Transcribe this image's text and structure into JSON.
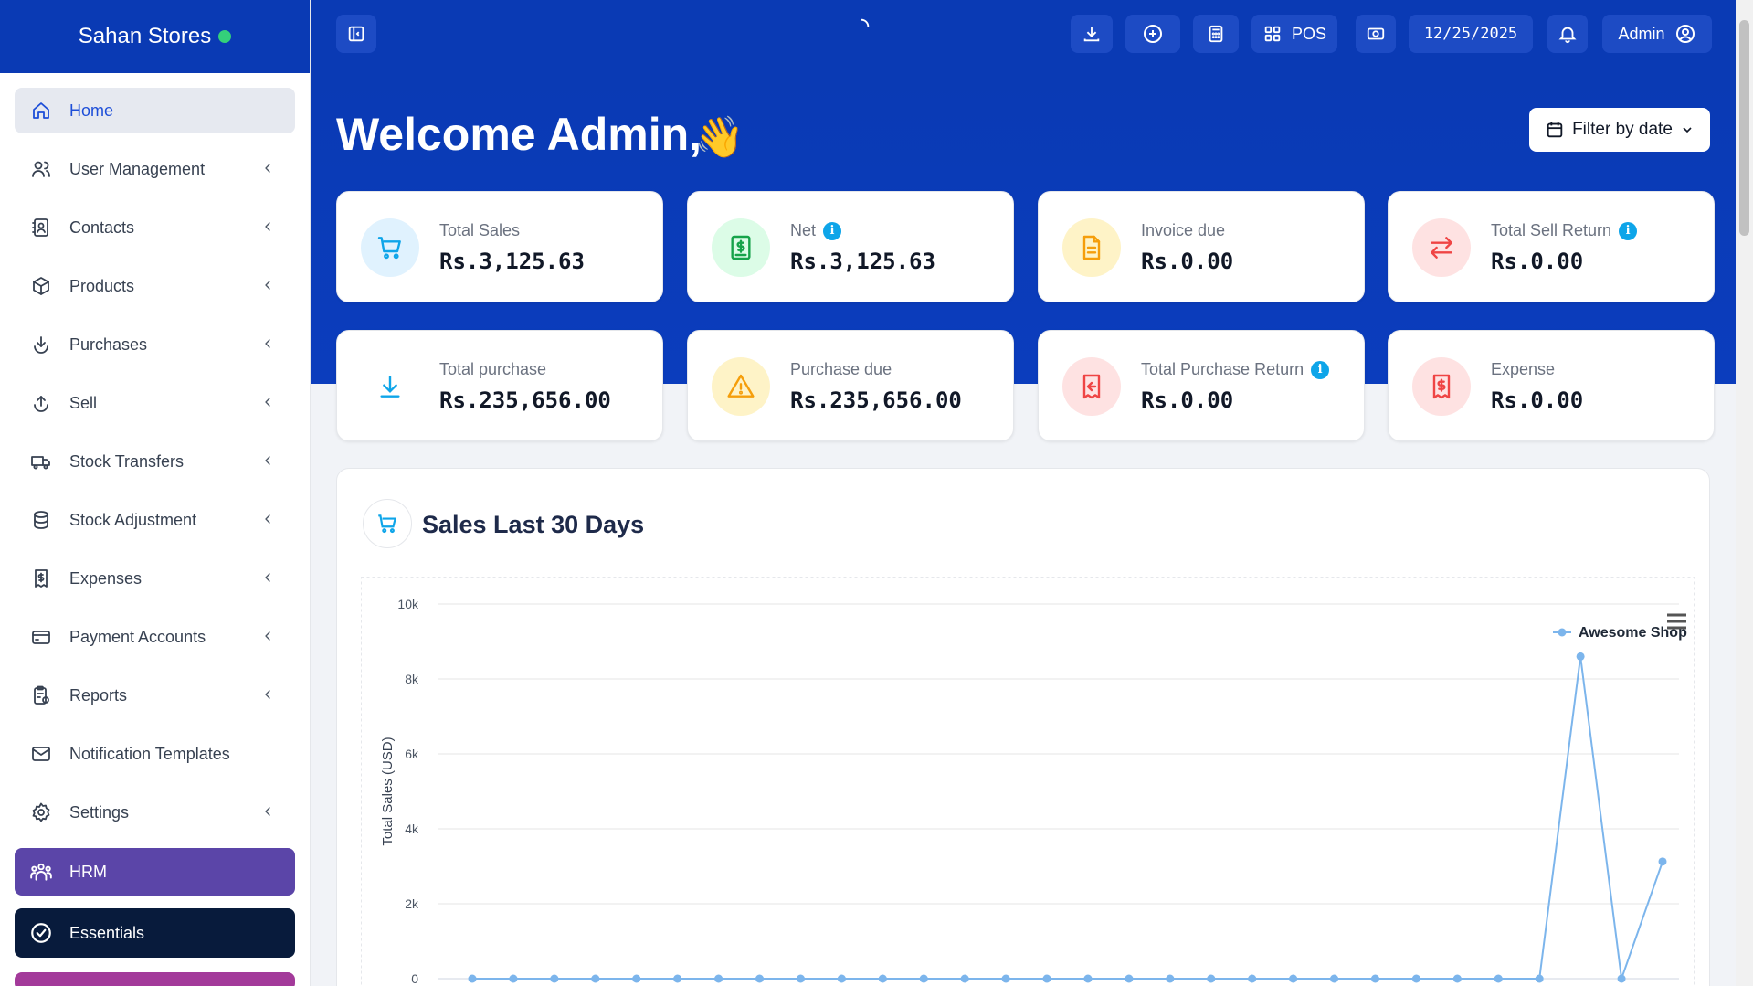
{
  "brand": {
    "name": "Sahan Stores",
    "status_color": "#34d07a"
  },
  "sidebar": {
    "items": [
      {
        "label": "Home",
        "icon": "home-icon",
        "active": true,
        "chevron": false
      },
      {
        "label": "User Management",
        "icon": "users-icon",
        "chevron": true
      },
      {
        "label": "Contacts",
        "icon": "contacts-icon",
        "chevron": true
      },
      {
        "label": "Products",
        "icon": "box-icon",
        "chevron": true
      },
      {
        "label": "Purchases",
        "icon": "download-circle-icon",
        "chevron": true
      },
      {
        "label": "Sell",
        "icon": "upload-circle-icon",
        "chevron": true
      },
      {
        "label": "Stock Transfers",
        "icon": "truck-icon",
        "chevron": true
      },
      {
        "label": "Stock Adjustment",
        "icon": "database-icon",
        "chevron": true
      },
      {
        "label": "Expenses",
        "icon": "receipt-dollar-icon",
        "chevron": true
      },
      {
        "label": "Payment Accounts",
        "icon": "credit-card-icon",
        "chevron": true
      },
      {
        "label": "Reports",
        "icon": "clipboard-report-icon",
        "chevron": true
      },
      {
        "label": "Notification Templates",
        "icon": "envelope-icon",
        "chevron": false
      },
      {
        "label": "Settings",
        "icon": "gear-icon",
        "chevron": true
      }
    ],
    "hrm_label": "HRM",
    "essentials_label": "Essentials",
    "hrm_color": "#5b45a8",
    "essentials_color": "#081b3c"
  },
  "topbar": {
    "pos_label": "POS",
    "date": "12/25/2025",
    "user_label": "Admin",
    "bg_color": "#0a3ab4"
  },
  "welcome": {
    "text": "Welcome Admin,",
    "emoji": "👋"
  },
  "filter": {
    "label": "Filter by date"
  },
  "stats": [
    {
      "label": "Total Sales",
      "value": "Rs.3,125.63",
      "info": false,
      "icon": "cart-icon",
      "bg": "#e0f2fe",
      "color": "#0ea5e9"
    },
    {
      "label": "Net",
      "value": "Rs.3,125.63",
      "info": true,
      "icon": "dollar-receipt-icon",
      "bg": "#dcfce7",
      "color": "#16a34a"
    },
    {
      "label": "Invoice due",
      "value": "Rs.0.00",
      "info": false,
      "icon": "document-icon",
      "bg": "#fef3c7",
      "color": "#f59e0b"
    },
    {
      "label": "Total Sell Return",
      "value": "Rs.0.00",
      "info": true,
      "icon": "exchange-arrows-icon",
      "bg": "#fee2e2",
      "color": "#ef4444"
    },
    {
      "label": "Total purchase",
      "value": "Rs.235,656.00",
      "info": false,
      "icon": "download-arrow-icon",
      "bg": "#ffffff",
      "color": "#0ea5e9"
    },
    {
      "label": "Purchase due",
      "value": "Rs.235,656.00",
      "info": false,
      "icon": "warning-triangle-icon",
      "bg": "#fef3c7",
      "color": "#f59e0b"
    },
    {
      "label": "Total Purchase Return",
      "value": "Rs.0.00",
      "info": true,
      "icon": "return-receipt-icon",
      "bg": "#fee2e2",
      "color": "#ef4444"
    },
    {
      "label": "Expense",
      "value": "Rs.0.00",
      "info": false,
      "icon": "expense-receipt-icon",
      "bg": "#fee2e2",
      "color": "#ef4444"
    }
  ],
  "sales_chart": {
    "title": "Sales Last 30 Days",
    "menu_icon": "hamburger-menu-icon"
  },
  "chart_data": {
    "type": "line",
    "title": "Sales Last 30 Days",
    "ylabel": "Total Sales (USD)",
    "xlabel": "",
    "ylim": [
      0,
      10000
    ],
    "yticks": [
      "0",
      "2k",
      "4k",
      "6k",
      "8k",
      "10k"
    ],
    "legend_position": "top-right",
    "grid": true,
    "series": [
      {
        "name": "Awesome Shop",
        "color": "#7cb5ec",
        "values": [
          0,
          0,
          0,
          0,
          0,
          0,
          0,
          0,
          0,
          0,
          0,
          0,
          0,
          0,
          0,
          0,
          0,
          0,
          0,
          0,
          0,
          0,
          0,
          0,
          0,
          0,
          0,
          8600,
          0,
          3125.63
        ]
      }
    ]
  }
}
